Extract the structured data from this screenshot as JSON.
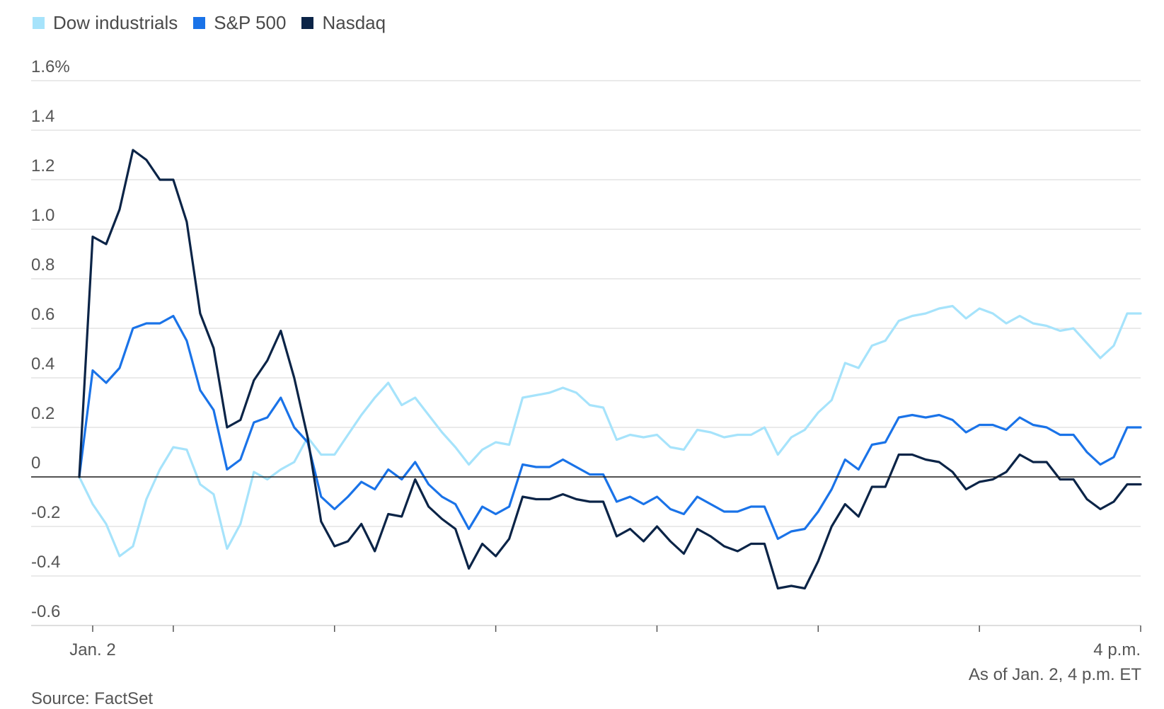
{
  "legend": {
    "series_0": "Dow industrials",
    "series_1": "S&P 500",
    "series_2": "Nasdaq"
  },
  "footer": {
    "as_of": "As of Jan. 2, 4 p.m. ET",
    "source": "Source: FactSet"
  },
  "chart_data": {
    "type": "line",
    "title": "",
    "xlabel": "",
    "ylabel": "",
    "ylim": [
      -0.6,
      1.6
    ],
    "y_ticks": [
      {
        "value": 1.6,
        "label": "1.6%"
      },
      {
        "value": 1.4,
        "label": "1.4"
      },
      {
        "value": 1.2,
        "label": "1.2"
      },
      {
        "value": 1.0,
        "label": "1.0"
      },
      {
        "value": 0.8,
        "label": "0.8"
      },
      {
        "value": 0.6,
        "label": "0.6"
      },
      {
        "value": 0.4,
        "label": "0.4"
      },
      {
        "value": 0.2,
        "label": "0.2"
      },
      {
        "value": 0,
        "label": "0"
      },
      {
        "value": -0.2,
        "label": "-0.2"
      },
      {
        "value": -0.4,
        "label": "-0.4"
      },
      {
        "value": -0.6,
        "label": "-0.6"
      }
    ],
    "x_tick_labels": [
      {
        "index": 1,
        "label": "Jan. 2"
      },
      {
        "index": 79,
        "label": "4 p.m."
      }
    ],
    "x_ticks_unlabeled": [
      7,
      19,
      31,
      43,
      55,
      67
    ],
    "grid": true,
    "legend_position": "top-left",
    "colors": {
      "Dow industrials": "#a6e3fb",
      "S&P 500": "#1a73e8",
      "Nasdaq": "#0b2447",
      "zero_line": "#1a1a1a",
      "grid": "#dedede",
      "axis_tick": "#555555"
    },
    "x": [
      0,
      1,
      2,
      3,
      4,
      5,
      6,
      7,
      8,
      9,
      10,
      11,
      12,
      13,
      14,
      15,
      16,
      17,
      18,
      19,
      20,
      21,
      22,
      23,
      24,
      25,
      26,
      27,
      28,
      29,
      30,
      31,
      32,
      33,
      34,
      35,
      36,
      37,
      38,
      39,
      40,
      41,
      42,
      43,
      44,
      45,
      46,
      47,
      48,
      49,
      50,
      51,
      52,
      53,
      54,
      55,
      56,
      57,
      58,
      59,
      60,
      61,
      62,
      63,
      64,
      65,
      66,
      67,
      68,
      69,
      70,
      71,
      72,
      73,
      74,
      75,
      76,
      77,
      78,
      79
    ],
    "series": [
      {
        "name": "Dow industrials",
        "values": [
          0.0,
          -0.11,
          -0.19,
          -0.32,
          -0.28,
          -0.09,
          0.03,
          0.12,
          0.11,
          -0.03,
          -0.07,
          -0.29,
          -0.19,
          0.02,
          -0.01,
          0.03,
          0.06,
          0.16,
          0.09,
          0.09,
          0.17,
          0.25,
          0.32,
          0.38,
          0.29,
          0.32,
          0.25,
          0.18,
          0.12,
          0.05,
          0.11,
          0.14,
          0.13,
          0.32,
          0.33,
          0.34,
          0.36,
          0.34,
          0.29,
          0.28,
          0.15,
          0.17,
          0.16,
          0.17,
          0.12,
          0.11,
          0.19,
          0.18,
          0.16,
          0.17,
          0.17,
          0.2,
          0.09,
          0.16,
          0.19,
          0.26,
          0.31,
          0.46,
          0.44,
          0.53,
          0.55,
          0.63,
          0.65,
          0.66,
          0.68,
          0.69,
          0.64,
          0.68,
          0.66,
          0.62,
          0.65,
          0.62,
          0.61,
          0.59,
          0.6,
          0.54,
          0.48,
          0.53,
          0.66,
          0.66
        ]
      },
      {
        "name": "S&P 500",
        "values": [
          0.0,
          0.43,
          0.38,
          0.44,
          0.6,
          0.62,
          0.62,
          0.65,
          0.55,
          0.35,
          0.27,
          0.03,
          0.07,
          0.22,
          0.24,
          0.32,
          0.2,
          0.14,
          -0.08,
          -0.13,
          -0.08,
          -0.02,
          -0.05,
          0.03,
          -0.01,
          0.06,
          -0.03,
          -0.08,
          -0.11,
          -0.21,
          -0.12,
          -0.15,
          -0.12,
          0.05,
          0.04,
          0.04,
          0.07,
          0.04,
          0.01,
          0.01,
          -0.1,
          -0.08,
          -0.11,
          -0.08,
          -0.13,
          -0.15,
          -0.08,
          -0.11,
          -0.14,
          -0.14,
          -0.12,
          -0.12,
          -0.25,
          -0.22,
          -0.21,
          -0.14,
          -0.05,
          0.07,
          0.03,
          0.13,
          0.14,
          0.24,
          0.25,
          0.24,
          0.25,
          0.23,
          0.18,
          0.21,
          0.21,
          0.19,
          0.24,
          0.21,
          0.2,
          0.17,
          0.17,
          0.1,
          0.05,
          0.08,
          0.2,
          0.2
        ]
      },
      {
        "name": "Nasdaq",
        "values": [
          0.0,
          0.97,
          0.94,
          1.08,
          1.32,
          1.28,
          1.2,
          1.2,
          1.03,
          0.66,
          0.52,
          0.2,
          0.23,
          0.39,
          0.47,
          0.59,
          0.4,
          0.16,
          -0.18,
          -0.28,
          -0.26,
          -0.19,
          -0.3,
          -0.15,
          -0.16,
          -0.01,
          -0.12,
          -0.17,
          -0.21,
          -0.37,
          -0.27,
          -0.32,
          -0.25,
          -0.08,
          -0.09,
          -0.09,
          -0.07,
          -0.09,
          -0.1,
          -0.1,
          -0.24,
          -0.21,
          -0.26,
          -0.2,
          -0.26,
          -0.31,
          -0.21,
          -0.24,
          -0.28,
          -0.3,
          -0.27,
          -0.27,
          -0.45,
          -0.44,
          -0.45,
          -0.34,
          -0.2,
          -0.11,
          -0.16,
          -0.04,
          -0.04,
          0.09,
          0.09,
          0.07,
          0.06,
          0.02,
          -0.05,
          -0.02,
          -0.01,
          0.02,
          0.09,
          0.06,
          0.06,
          -0.01,
          -0.01,
          -0.09,
          -0.13,
          -0.1,
          -0.03,
          -0.03
        ]
      }
    ]
  }
}
